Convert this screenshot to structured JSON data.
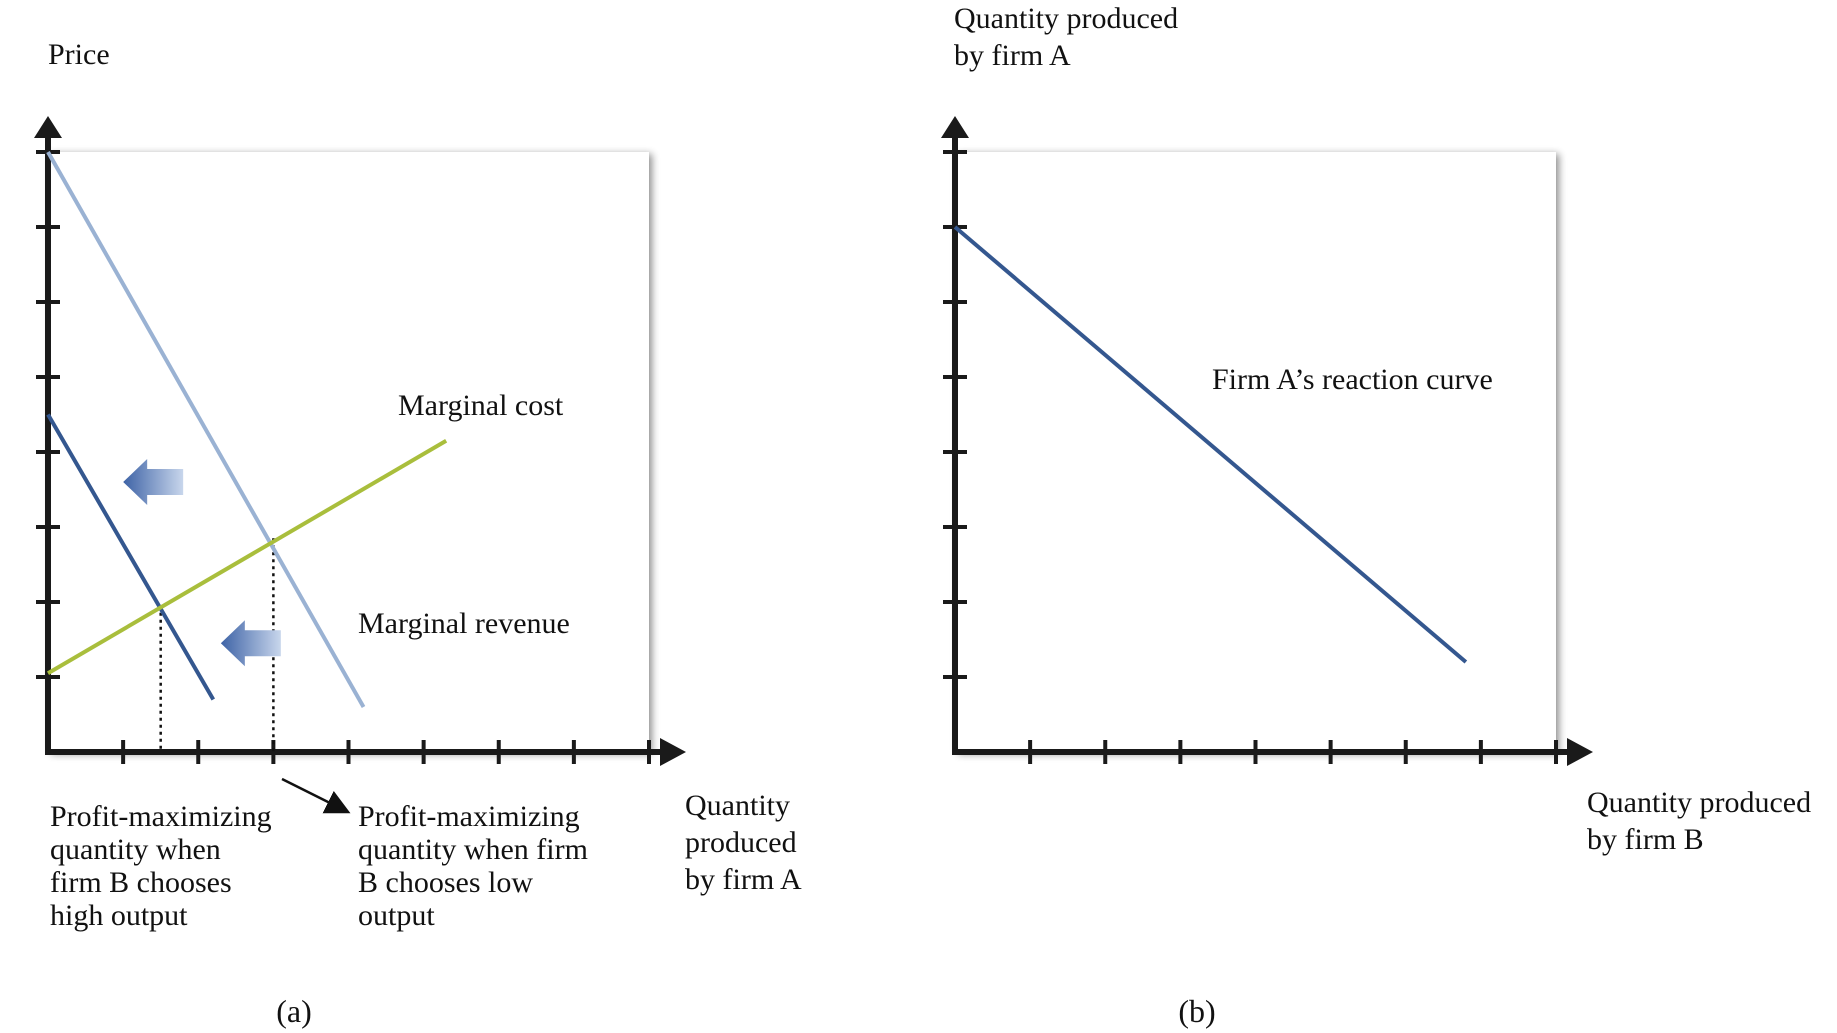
{
  "colors": {
    "axis": "#1a1a1a",
    "curve_dark": "#34578f",
    "curve_light": "#9ab2d3",
    "marginal_cost": "#a9be3c",
    "shift_arrow_start": "#3e63a6",
    "shift_arrow_end": "#c8d6ec"
  },
  "chart_data": [
    {
      "type": "line",
      "caption": "(a)",
      "ylabel": "Price",
      "xlabel_lines": [
        "Quantity",
        "produced",
        "by firm A"
      ],
      "x_ticks": 8,
      "y_ticks": 8,
      "xlim": [
        0,
        8
      ],
      "ylim": [
        0,
        8
      ],
      "grid": false,
      "series": [
        {
          "name": "",
          "style": "light",
          "x": [
            0,
            4.2
          ],
          "y": [
            8,
            0.6
          ]
        },
        {
          "name": "",
          "style": "dark",
          "x": [
            0,
            2.2
          ],
          "y": [
            4.5,
            0.7
          ]
        },
        {
          "name": "Marginal cost",
          "style": "mc",
          "x": [
            0,
            5.3
          ],
          "y": [
            1.05,
            4.15
          ]
        }
      ],
      "annotations": [
        {
          "text": "Marginal cost",
          "x": 4.65,
          "y": 4.6
        },
        {
          "text": "Marginal revenue",
          "x": 4.3,
          "y": 1.75
        }
      ],
      "intersections": [
        {
          "x": 1.5,
          "y": 1.95,
          "label_lines": [
            "Profit-maximizing",
            "quantity when",
            "firm B chooses",
            "high output"
          ]
        },
        {
          "x": 3.0,
          "y": 2.85,
          "label_lines": [
            "Profit-maximizing",
            "quantity when firm",
            "B chooses low",
            "output"
          ]
        }
      ],
      "shift_arrows": [
        {
          "x": 1.4,
          "y": 3.6
        },
        {
          "x": 2.7,
          "y": 1.45
        }
      ]
    },
    {
      "type": "line",
      "caption": "(b)",
      "ylabel_lines": [
        "Quantity produced",
        "by firm A"
      ],
      "xlabel_lines": [
        "Quantity produced",
        "by firm B"
      ],
      "x_ticks": 8,
      "y_ticks": 8,
      "xlim": [
        0,
        8
      ],
      "ylim": [
        0,
        8
      ],
      "grid": false,
      "series": [
        {
          "name": "Firm A’s reaction curve",
          "style": "dark",
          "x": [
            0,
            6.8
          ],
          "y": [
            7,
            1.2
          ]
        }
      ],
      "annotations": [
        {
          "text": "Firm A’s reaction curve",
          "x": 5.5,
          "y": 4.9
        }
      ]
    }
  ]
}
